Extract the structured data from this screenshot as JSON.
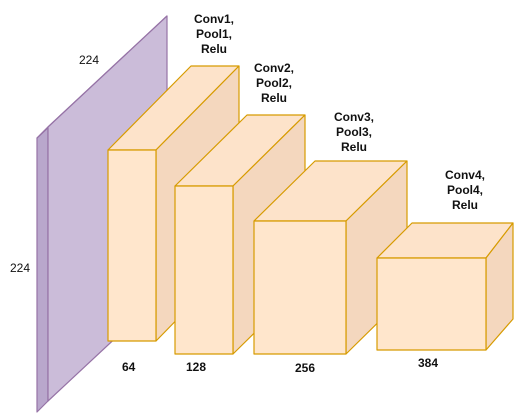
{
  "colors": {
    "input_front": "#cbbcd9",
    "input_side": "#b9a7cc",
    "input_top": "#ddd1e8",
    "input_stroke": "#9673a6",
    "block_front": "#ffe6cc",
    "block_side": "#f4d7be",
    "block_top": "#fde3ca",
    "block_stroke": "#d79b00"
  },
  "input": {
    "width_label": "224",
    "height_label": "224"
  },
  "blocks": [
    {
      "title": "Conv1,\nPool1,\nRelu",
      "channels": "64"
    },
    {
      "title": "Conv2,\nPool2,\nRelu",
      "channels": "128"
    },
    {
      "title": "Conv3,\nPool3,\nRelu",
      "channels": "256"
    },
    {
      "title": "Conv4,\nPool4,\nRelu",
      "channels": "384"
    }
  ]
}
